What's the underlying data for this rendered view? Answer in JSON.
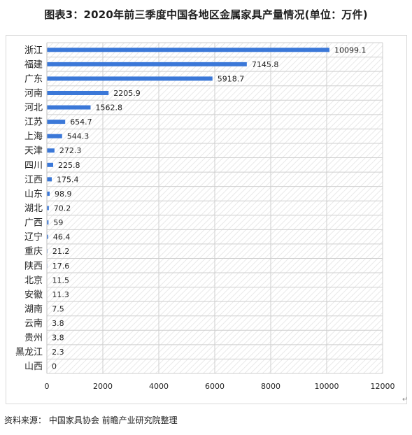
{
  "title": "图表3：2020年前三季度中国各地区金属家具产量情况(单位：万件)",
  "source": "资料来源：  中国家具协会 前瞻产业研究院整理",
  "corner_mark": "↵",
  "colors": {
    "bar": "#3b78d8",
    "grid": "#cfcfcf",
    "plot_bg_hatch": "#e6e6e6",
    "text": "#222222"
  },
  "chart_data": {
    "type": "bar",
    "orientation": "horizontal",
    "title": "",
    "xlabel": "",
    "ylabel": "",
    "categories": [
      "浙江",
      "福建",
      "广东",
      "河南",
      "河北",
      "江苏",
      "上海",
      "天津",
      "四川",
      "江西",
      "山东",
      "湖北",
      "广西",
      "辽宁",
      "重庆",
      "陕西",
      "北京",
      "安徽",
      "湖南",
      "云南",
      "贵州",
      "黑龙江",
      "山西"
    ],
    "values": [
      10099.1,
      7145.8,
      5918.7,
      2205.9,
      1562.8,
      654.7,
      544.3,
      272.3,
      225.8,
      175.4,
      98.9,
      70.2,
      59,
      46.4,
      21.2,
      17.6,
      11.5,
      11.3,
      7.5,
      3.8,
      3.8,
      2.3,
      0
    ],
    "data_labels": [
      "10099.1",
      "7145.8",
      "5918.7",
      "2205.9",
      "1562.8",
      "654.7",
      "544.3",
      "272.3",
      "225.8",
      "175.4",
      "98.9",
      "70.2",
      "59",
      "46.4",
      "21.2",
      "17.6",
      "11.5",
      "11.3",
      "7.5",
      "3.8",
      "3.8",
      "2.3",
      "0"
    ],
    "xlim": [
      0,
      12000
    ],
    "xticks": [
      "0",
      "2000",
      "4000",
      "6000",
      "8000",
      "10000",
      "12000"
    ],
    "grid": true,
    "legend": "none"
  }
}
